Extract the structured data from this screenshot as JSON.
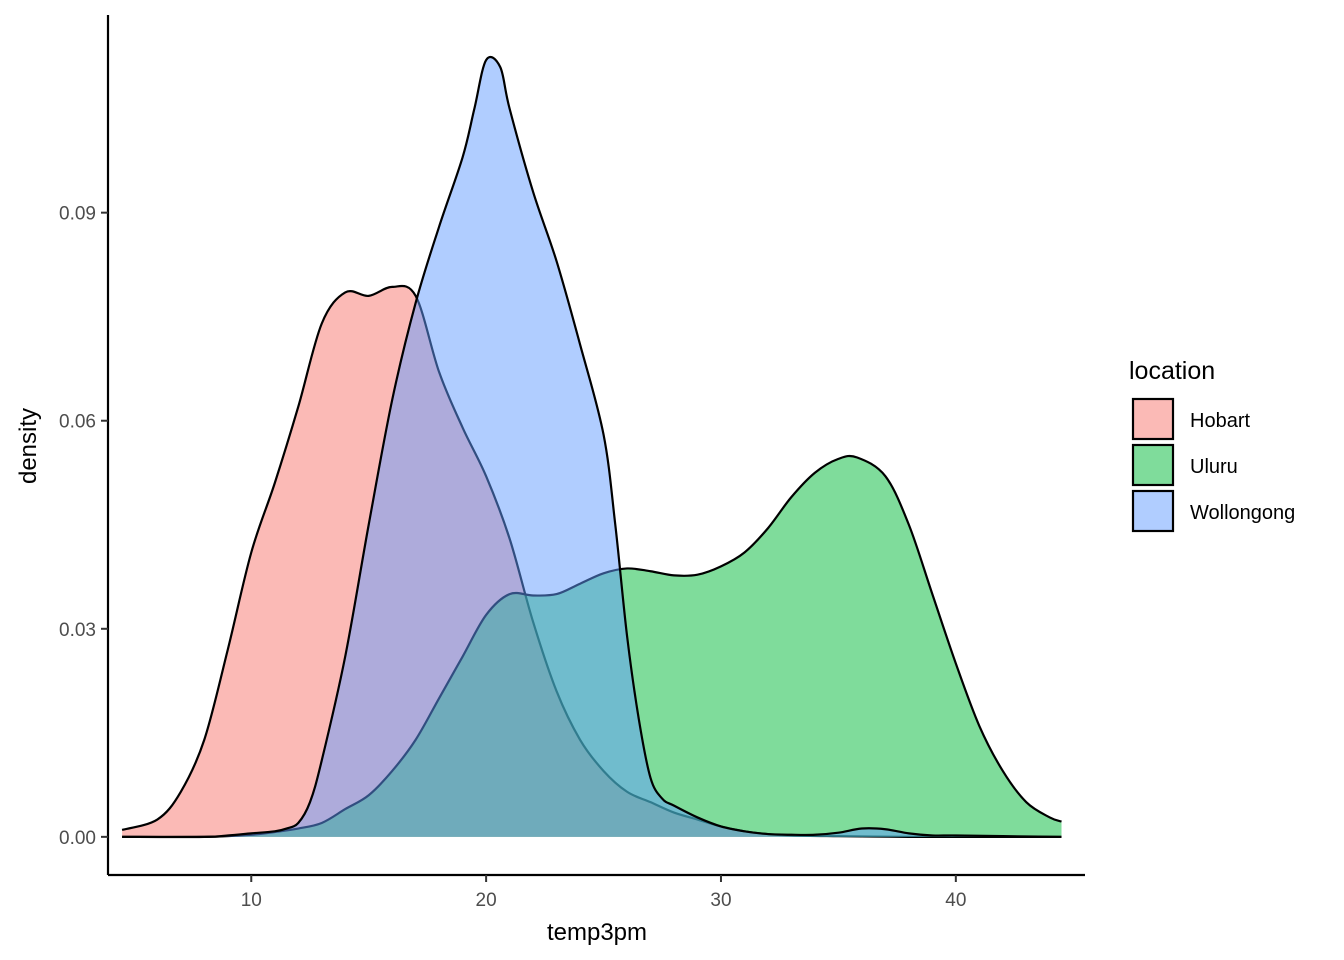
{
  "chart_data": {
    "type": "area",
    "xlabel": "temp3pm",
    "ylabel": "density",
    "xlim": [
      3.9,
      45.5
    ],
    "ylim": [
      -0.0055,
      0.1185
    ],
    "x_ticks": [
      10,
      20,
      30,
      40
    ],
    "y_ticks": [
      0.0,
      0.03,
      0.06,
      0.09
    ],
    "x_tick_labels": [
      "10",
      "20",
      "30",
      "40"
    ],
    "y_tick_labels": [
      "0.00",
      "0.03",
      "0.06",
      "0.09"
    ],
    "grid": false,
    "legend": {
      "title": "location",
      "position": "right",
      "entries": [
        "Hobart",
        "Uluru",
        "Wollongong"
      ]
    },
    "fill_alpha": 0.5,
    "series": [
      {
        "name": "Hobart",
        "color": "#F8766D",
        "points": [
          [
            4.5,
            0.001
          ],
          [
            6,
            0.0025
          ],
          [
            7,
            0.0065
          ],
          [
            8,
            0.014
          ],
          [
            9,
            0.027
          ],
          [
            10,
            0.041
          ],
          [
            11,
            0.051
          ],
          [
            12,
            0.062
          ],
          [
            13,
            0.074
          ],
          [
            14,
            0.0785
          ],
          [
            15,
            0.078
          ],
          [
            16,
            0.0793
          ],
          [
            17,
            0.078
          ],
          [
            18,
            0.067
          ],
          [
            19,
            0.059
          ],
          [
            20,
            0.052
          ],
          [
            21,
            0.043
          ],
          [
            22,
            0.031
          ],
          [
            23,
            0.021
          ],
          [
            24,
            0.014
          ],
          [
            25,
            0.0095
          ],
          [
            26,
            0.0065
          ],
          [
            27,
            0.005
          ],
          [
            28,
            0.0035
          ],
          [
            29,
            0.0025
          ],
          [
            30,
            0.0015
          ],
          [
            31,
            0.0008
          ],
          [
            32,
            0.0004
          ],
          [
            33,
            0.0002
          ],
          [
            35,
            0.0001
          ],
          [
            38,
            0.0
          ],
          [
            40,
            0.0
          ],
          [
            44.5,
            0.0
          ]
        ]
      },
      {
        "name": "Uluru",
        "color": "#00BA38",
        "points": [
          [
            4.5,
            0.0
          ],
          [
            8,
            0.0
          ],
          [
            10,
            0.0003
          ],
          [
            11,
            0.0007
          ],
          [
            12,
            0.0012
          ],
          [
            13,
            0.002
          ],
          [
            14,
            0.004
          ],
          [
            15,
            0.006
          ],
          [
            16,
            0.0095
          ],
          [
            17,
            0.014
          ],
          [
            18,
            0.02
          ],
          [
            19,
            0.026
          ],
          [
            20,
            0.032
          ],
          [
            21,
            0.035
          ],
          [
            22,
            0.0348
          ],
          [
            23,
            0.035
          ],
          [
            24,
            0.0365
          ],
          [
            25,
            0.038
          ],
          [
            26,
            0.0387
          ],
          [
            27,
            0.0383
          ],
          [
            28,
            0.0377
          ],
          [
            29,
            0.0378
          ],
          [
            30,
            0.039
          ],
          [
            31,
            0.041
          ],
          [
            32,
            0.0445
          ],
          [
            33,
            0.049
          ],
          [
            34,
            0.0525
          ],
          [
            35,
            0.0545
          ],
          [
            35.8,
            0.0547
          ],
          [
            37,
            0.052
          ],
          [
            38,
            0.045
          ],
          [
            39,
            0.035
          ],
          [
            40,
            0.025
          ],
          [
            41,
            0.016
          ],
          [
            42,
            0.0095
          ],
          [
            43,
            0.005
          ],
          [
            44,
            0.0028
          ],
          [
            44.5,
            0.0022
          ]
        ]
      },
      {
        "name": "Wollongong",
        "color": "#619CFF",
        "points": [
          [
            4.5,
            0.0
          ],
          [
            8,
            0.0
          ],
          [
            9,
            0.0002
          ],
          [
            10,
            0.0005
          ],
          [
            11,
            0.0008
          ],
          [
            11.5,
            0.0012
          ],
          [
            12,
            0.002
          ],
          [
            12.5,
            0.005
          ],
          [
            13,
            0.011
          ],
          [
            14,
            0.026
          ],
          [
            15,
            0.045
          ],
          [
            16,
            0.063
          ],
          [
            17,
            0.077
          ],
          [
            18,
            0.088
          ],
          [
            19,
            0.098
          ],
          [
            19.5,
            0.105
          ],
          [
            20,
            0.112
          ],
          [
            20.6,
            0.111
          ],
          [
            21,
            0.105
          ],
          [
            22,
            0.093
          ],
          [
            23,
            0.083
          ],
          [
            24,
            0.071
          ],
          [
            25,
            0.058
          ],
          [
            25.5,
            0.045
          ],
          [
            26,
            0.029
          ],
          [
            26.5,
            0.017
          ],
          [
            27,
            0.0085
          ],
          [
            27.5,
            0.0055
          ],
          [
            28,
            0.0045
          ],
          [
            29,
            0.0028
          ],
          [
            30,
            0.0015
          ],
          [
            31,
            0.0008
          ],
          [
            32,
            0.0004
          ],
          [
            33,
            0.0003
          ],
          [
            34,
            0.0003
          ],
          [
            35,
            0.0006
          ],
          [
            36,
            0.0012
          ],
          [
            37,
            0.0011
          ],
          [
            38,
            0.0005
          ],
          [
            39,
            0.0002
          ],
          [
            40,
            0.0002
          ],
          [
            42,
            0.0001
          ],
          [
            44.5,
            0.0
          ]
        ]
      }
    ]
  }
}
